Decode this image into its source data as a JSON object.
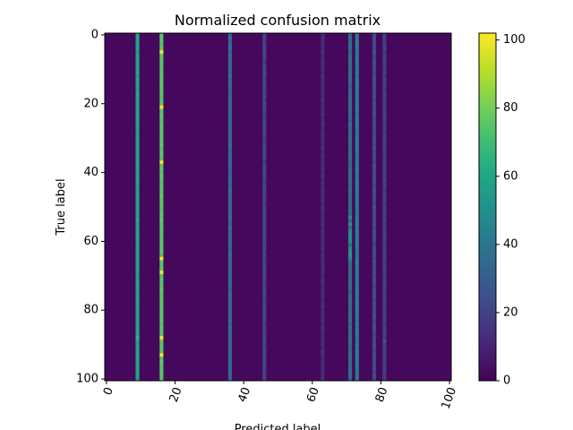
{
  "chart_data": {
    "type": "heatmap",
    "title": "Normalized confusion matrix",
    "xlabel": "Predicted label",
    "ylabel": "True label",
    "xlim": [
      -0.5,
      100.5
    ],
    "ylim": [
      100.5,
      -0.5
    ],
    "xticks": [
      0,
      20,
      40,
      60,
      80,
      100
    ],
    "yticks": [
      0,
      20,
      40,
      60,
      80,
      100
    ],
    "colormap": "viridis",
    "colorbar": {
      "lim": [
        0,
        102
      ],
      "ticks": [
        0,
        20,
        40,
        60,
        80,
        100
      ]
    },
    "columns": [
      {
        "x": 9,
        "values": [
          58,
          60,
          57,
          59,
          61,
          56,
          58,
          60,
          59,
          57,
          58,
          62,
          57,
          59,
          60,
          58,
          56,
          61,
          59,
          58,
          57,
          60,
          58,
          59,
          61,
          57,
          58,
          60,
          56,
          59,
          58,
          61,
          57,
          60,
          58,
          59,
          57,
          62,
          58,
          60,
          59,
          57,
          61,
          58,
          60,
          56,
          59,
          58,
          61,
          57,
          58,
          60,
          59,
          57,
          62,
          58,
          60,
          57,
          59,
          61,
          58,
          57,
          60,
          59,
          58,
          61,
          57,
          59,
          60,
          58,
          56,
          59,
          61,
          58,
          60,
          57,
          59,
          58,
          62,
          57,
          60,
          58,
          59,
          61,
          57,
          58,
          60,
          59,
          66,
          58,
          57,
          60,
          59,
          58,
          61,
          57,
          59,
          60,
          58,
          57,
          59
        ]
      },
      {
        "x": 16,
        "values": [
          74,
          76,
          75,
          73,
          77,
          100,
          75,
          74,
          76,
          75,
          73,
          76,
          75,
          74,
          77,
          75,
          74,
          76,
          73,
          75,
          76,
          100,
          74,
          75,
          77,
          73,
          76,
          75,
          74,
          76,
          75,
          74,
          77,
          73,
          76,
          75,
          74,
          100,
          75,
          76,
          74,
          77,
          75,
          73,
          76,
          74,
          75,
          77,
          74,
          76,
          75,
          73,
          76,
          74,
          77,
          75,
          74,
          76,
          73,
          75,
          76,
          74,
          75,
          77,
          73,
          100,
          75,
          74,
          76,
          100,
          74,
          76,
          75,
          73,
          77,
          75,
          74,
          76,
          75,
          74,
          76,
          75,
          74,
          77,
          73,
          75,
          76,
          74,
          100,
          75,
          74,
          76,
          75,
          100,
          73,
          77,
          75,
          74,
          76,
          75,
          74
        ]
      },
      {
        "x": 36,
        "values": [
          34,
          37,
          33,
          36,
          38,
          32,
          35,
          36,
          34,
          37,
          35,
          33,
          38,
          34,
          36,
          37,
          32,
          35,
          36,
          34,
          37,
          35,
          33,
          36,
          38,
          34,
          35,
          37,
          33,
          36,
          34,
          36,
          38,
          35,
          33,
          37,
          34,
          36,
          35,
          32,
          36,
          34,
          37,
          35,
          33,
          38,
          36,
          34,
          35,
          37,
          33,
          36,
          34,
          38,
          35,
          32,
          37,
          34,
          36,
          35,
          34,
          37,
          33,
          36,
          38,
          35,
          34,
          36,
          33,
          37,
          35,
          34,
          36,
          38,
          32,
          35,
          37,
          34,
          36,
          33,
          36,
          35,
          34,
          37,
          33,
          38,
          36,
          35,
          34,
          37,
          35,
          33,
          36,
          34,
          38,
          35,
          37,
          34,
          36,
          33,
          35
        ]
      },
      {
        "x": 46,
        "values": [
          20,
          22,
          18,
          21,
          23,
          19,
          20,
          22,
          17,
          21,
          19,
          23,
          20,
          18,
          22,
          21,
          19,
          20,
          23,
          18,
          21,
          20,
          22,
          19,
          18,
          23,
          20,
          21,
          19,
          22,
          20,
          18,
          23,
          21,
          19,
          22,
          20,
          17,
          21,
          23,
          19,
          22,
          20,
          18,
          21,
          23,
          19,
          20,
          22,
          18,
          21,
          19,
          23,
          20,
          22,
          18,
          21,
          20,
          19,
          23,
          22,
          20,
          25,
          19,
          21,
          18,
          22,
          20,
          23,
          19,
          21,
          20,
          18,
          22,
          19,
          23,
          21,
          20,
          18,
          22,
          20,
          19,
          23,
          21,
          18,
          22,
          20,
          19,
          21,
          23,
          18,
          20,
          22,
          19,
          21,
          20,
          23,
          18,
          22,
          19,
          21
        ]
      },
      {
        "x": 63,
        "values": [
          12,
          14,
          11,
          13,
          10,
          15,
          12,
          11,
          14,
          13,
          12,
          10,
          15,
          13,
          11,
          14,
          12,
          13,
          10,
          15,
          11,
          13,
          12,
          14,
          10,
          13,
          15,
          11,
          12,
          14,
          13,
          11,
          12,
          15,
          10,
          14,
          13,
          12,
          11,
          14,
          12,
          15,
          10,
          13,
          11,
          14,
          12,
          13,
          15,
          10,
          12,
          14,
          11,
          13,
          12,
          15,
          10,
          14,
          12,
          11,
          13,
          12,
          14,
          10,
          15,
          12,
          11,
          13,
          14,
          12,
          10,
          13,
          15,
          11,
          12,
          14,
          13,
          10,
          12,
          15,
          11,
          14,
          12,
          13,
          10,
          15,
          12,
          11,
          14,
          13,
          12,
          10,
          15,
          13,
          11,
          14,
          12,
          13,
          11,
          12,
          14
        ]
      },
      {
        "x": 71,
        "values": [
          34,
          36,
          33,
          37,
          35,
          32,
          36,
          34,
          38,
          35,
          33,
          36,
          34,
          37,
          35,
          32,
          36,
          33,
          38,
          34,
          35,
          37,
          33,
          36,
          34,
          32,
          37,
          35,
          33,
          36,
          34,
          38,
          35,
          33,
          36,
          37,
          34,
          35,
          33,
          36,
          38,
          34,
          36,
          35,
          33,
          37,
          34,
          36,
          35,
          33,
          36,
          38,
          34,
          48,
          36,
          50,
          35,
          47,
          52,
          49,
          51,
          36,
          48,
          50,
          55,
          46,
          37,
          34,
          36,
          35,
          33,
          37,
          34,
          36,
          35,
          32,
          37,
          34,
          36,
          33,
          35,
          37,
          34,
          36,
          33,
          38,
          35,
          34,
          36,
          37,
          33,
          35,
          34,
          36,
          38,
          33,
          35,
          37,
          34,
          36,
          35
        ]
      },
      {
        "x": 73,
        "values": [
          42,
          40,
          44,
          45,
          41,
          39,
          43,
          40,
          45,
          42,
          41,
          44,
          40,
          43,
          42,
          46,
          41,
          44,
          40,
          43,
          42,
          45,
          41,
          40,
          44,
          43,
          42,
          46,
          40,
          41,
          44,
          42,
          45,
          41,
          43,
          40,
          42,
          44,
          41,
          46,
          43,
          40,
          42,
          45,
          41,
          44,
          40,
          43,
          42,
          41,
          45,
          43,
          40,
          44,
          42,
          46,
          41,
          43,
          40,
          44,
          42,
          45,
          41,
          43,
          40,
          42,
          46,
          44,
          41,
          43,
          40,
          45,
          42,
          41,
          44,
          43,
          40,
          42,
          46,
          41,
          44,
          43,
          42,
          40,
          45,
          41,
          43,
          44,
          42,
          40,
          46,
          41,
          43,
          42,
          44,
          40,
          45,
          42,
          41,
          43,
          44
        ]
      },
      {
        "x": 78,
        "values": [
          22,
          24,
          20,
          23,
          21,
          25,
          22,
          19,
          24,
          21,
          23,
          20,
          22,
          25,
          21,
          24,
          23,
          20,
          22,
          19,
          24,
          21,
          23,
          25,
          20,
          22,
          24,
          21,
          19,
          23,
          22,
          25,
          20,
          24,
          21,
          23,
          22,
          19,
          24,
          20,
          23,
          21,
          25,
          22,
          20,
          24,
          21,
          23,
          22,
          19,
          25,
          20,
          24,
          22,
          21,
          23,
          20,
          25,
          22,
          24,
          21,
          19,
          23,
          22,
          24,
          20,
          25,
          21,
          23,
          22,
          20,
          24,
          21,
          19,
          23,
          25,
          22,
          20,
          24,
          21,
          23,
          22,
          25,
          20,
          21,
          24,
          22,
          19,
          23,
          21,
          24,
          22,
          20,
          25,
          23,
          21,
          22,
          24,
          20,
          23,
          21
        ]
      },
      {
        "x": 81,
        "values": [
          18,
          20,
          17,
          19,
          21,
          16,
          18,
          20,
          19,
          17,
          18,
          21,
          17,
          19,
          20,
          18,
          16,
          21,
          19,
          18,
          17,
          20,
          18,
          19,
          21,
          17,
          18,
          20,
          16,
          19,
          18,
          21,
          17,
          20,
          18,
          19,
          17,
          21,
          18,
          20,
          19,
          17,
          21,
          18,
          20,
          16,
          19,
          18,
          21,
          17,
          18,
          20,
          19,
          17,
          21,
          18,
          20,
          17,
          19,
          21,
          18,
          17,
          20,
          19,
          18,
          21,
          17,
          19,
          20,
          18,
          16,
          19,
          21,
          18,
          20,
          17,
          19,
          18,
          21,
          17,
          20,
          18,
          19,
          21,
          17,
          18,
          20,
          19,
          17,
          28,
          17,
          20,
          19,
          18,
          21,
          17,
          19,
          20,
          18,
          17,
          19
        ]
      }
    ]
  }
}
